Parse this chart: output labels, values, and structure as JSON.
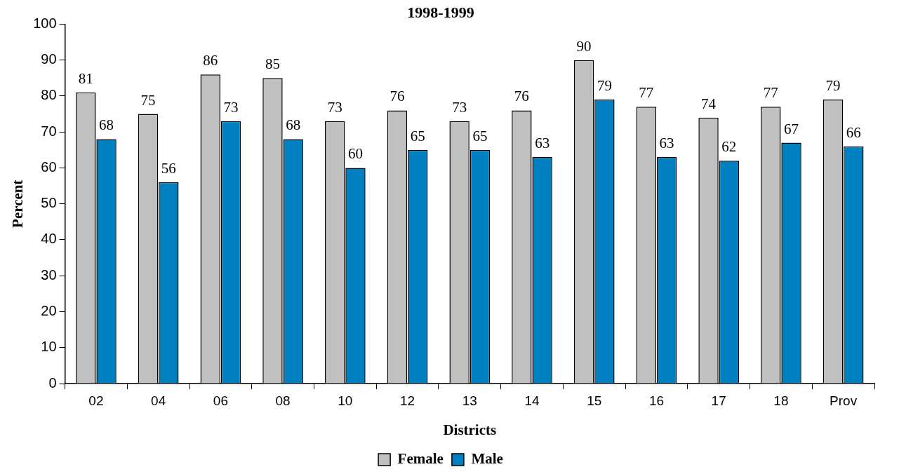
{
  "chart_data": {
    "type": "bar",
    "title": "1998-1999",
    "xlabel": "Districts",
    "ylabel": "Percent",
    "categories": [
      "02",
      "04",
      "06",
      "08",
      "10",
      "12",
      "13",
      "14",
      "15",
      "16",
      "17",
      "18",
      "Prov"
    ],
    "series": [
      {
        "name": "Female",
        "color": "#c0c0c0",
        "values": [
          81,
          75,
          86,
          85,
          73,
          76,
          73,
          76,
          90,
          77,
          74,
          77,
          79
        ]
      },
      {
        "name": "Male",
        "color": "#0080c0",
        "values": [
          68,
          56,
          73,
          68,
          60,
          65,
          65,
          63,
          79,
          63,
          62,
          67,
          66
        ]
      }
    ],
    "ylim": [
      0,
      100
    ],
    "yticks": [
      0,
      10,
      20,
      30,
      40,
      50,
      60,
      70,
      80,
      90,
      100
    ],
    "grid": false,
    "legend": "bottom",
    "data_labels": true
  }
}
